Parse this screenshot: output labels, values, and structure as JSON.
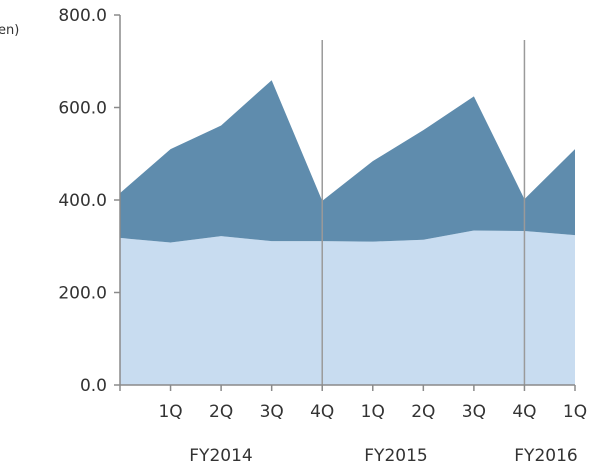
{
  "unit_label": "en)",
  "chart_data": {
    "type": "area",
    "stacked": true,
    "categories": [
      "",
      "1Q",
      "2Q",
      "3Q",
      "4Q",
      "1Q",
      "2Q",
      "3Q",
      "4Q",
      "1Q"
    ],
    "groups": [
      {
        "label": "FY2014"
      },
      {
        "label": "FY2015"
      },
      {
        "label": "FY2016"
      }
    ],
    "series": [
      {
        "values": [
          318,
          308,
          322,
          311,
          311,
          310,
          314,
          334,
          333,
          324
        ],
        "color": "#c8dcf0"
      },
      {
        "values": [
          97,
          202,
          239,
          348,
          87,
          174,
          237,
          290,
          69,
          186
        ],
        "color": "#5f8cad"
      }
    ],
    "totals": [
      415,
      510,
      561,
      659,
      398,
      484,
      551,
      624,
      402,
      510
    ],
    "yticks": [
      "0.0",
      "200.0",
      "400.0",
      "600.0",
      "800.0"
    ],
    "ylim": [
      0,
      800
    ],
    "grid": false
  }
}
